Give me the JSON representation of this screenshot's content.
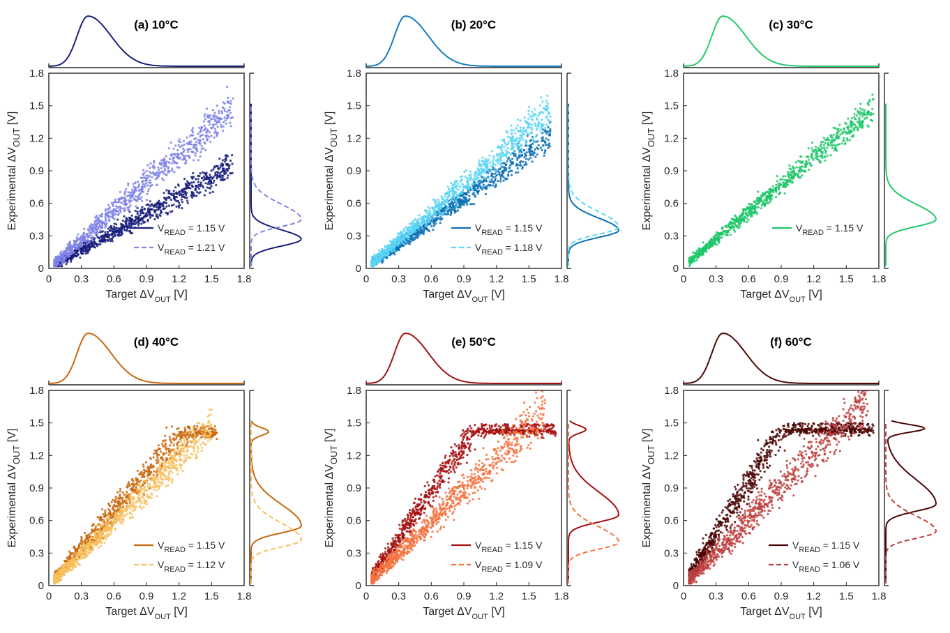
{
  "chart_data": [
    {
      "type": "scatter",
      "title": "(a) 10°C",
      "xlabel": {
        "pre": "Target ΔV",
        "sub": "OUT",
        "post": " [V]"
      },
      "ylabel": {
        "pre": "Experimental ΔV",
        "sub": "OUT",
        "post": " [V]"
      },
      "xlim": [
        0,
        1.8
      ],
      "ylim": [
        0,
        1.8
      ],
      "xticks": [
        "0",
        "0.3",
        "0.6",
        "0.9",
        "1.2",
        "1.5",
        "1.8"
      ],
      "yticks": [
        "0",
        "0.3",
        "0.6",
        "0.9",
        "1.2",
        "1.5",
        "1.8"
      ],
      "marginal_x": {
        "color": "#1a1f7a",
        "peak": 0.36
      },
      "series": [
        {
          "name": "1.15 V",
          "legend_pre": "V",
          "legend_sub": "READ",
          "legend_post": " = 1.15 V",
          "color": "#171d7a",
          "style": "solid",
          "slope": 0.56,
          "intercept": 0.0,
          "spread": 0.05,
          "xmax": 1.7,
          "sat": null,
          "dist_peak": 0.27,
          "dist_width": 0.12
        },
        {
          "name": "1.21 V",
          "legend_pre": "V",
          "legend_sub": "READ",
          "legend_post": " = 1.21 V",
          "color": "#7f84e6",
          "style": "dashed",
          "slope": 0.88,
          "intercept": 0.0,
          "spread": 0.07,
          "xmax": 1.7,
          "sat": null,
          "dist_peak": 0.45,
          "dist_width": 0.2
        }
      ]
    },
    {
      "type": "scatter",
      "title": "(b) 20°C",
      "xlabel": {
        "pre": "Target ΔV",
        "sub": "OUT",
        "post": " [V]"
      },
      "ylabel": {
        "pre": "Experimental ΔV",
        "sub": "OUT",
        "post": " [V]"
      },
      "xlim": [
        0,
        1.8
      ],
      "ylim": [
        0,
        1.8
      ],
      "xticks": [
        "0",
        "0.3",
        "0.6",
        "0.9",
        "1.2",
        "1.5",
        "1.8"
      ],
      "yticks": [
        "0",
        "0.3",
        "0.6",
        "0.9",
        "1.2",
        "1.5",
        "1.8"
      ],
      "marginal_x": {
        "color": "#127bbd",
        "peak": 0.36
      },
      "series": [
        {
          "name": "1.15 V",
          "legend_pre": "V",
          "legend_sub": "READ",
          "legend_post": " = 1.15 V",
          "color": "#0d6fb3",
          "style": "solid",
          "slope": 0.72,
          "intercept": 0.0,
          "spread": 0.05,
          "xmax": 1.7,
          "sat": null,
          "dist_peak": 0.35,
          "dist_width": 0.16
        },
        {
          "name": "1.18 V",
          "legend_pre": "V",
          "legend_sub": "READ",
          "legend_post": " = 1.18 V",
          "color": "#5bd5f5",
          "style": "dashed",
          "slope": 0.86,
          "intercept": 0.0,
          "spread": 0.06,
          "xmax": 1.7,
          "sat": null,
          "dist_peak": 0.38,
          "dist_width": 0.2
        }
      ]
    },
    {
      "type": "scatter",
      "title": "(c) 30°C",
      "xlabel": {
        "pre": "Target ΔV",
        "sub": "OUT",
        "post": " [V]"
      },
      "ylabel": {
        "pre": "Experimental ΔV",
        "sub": "OUT",
        "post": " [V]"
      },
      "xlim": [
        0,
        1.8
      ],
      "ylim": [
        0,
        1.8
      ],
      "xticks": [
        "0",
        "0.3",
        "0.6",
        "0.9",
        "1.2",
        "1.5",
        "1.8"
      ],
      "yticks": [
        "0",
        "0.3",
        "0.6",
        "0.9",
        "1.2",
        "1.5",
        "1.8"
      ],
      "marginal_x": {
        "color": "#23c86a",
        "peak": 0.36
      },
      "series": [
        {
          "name": "1.15 V",
          "legend_pre": "V",
          "legend_sub": "READ",
          "legend_post": " = 1.15 V",
          "color": "#1fc76a",
          "style": "solid",
          "slope": 0.84,
          "intercept": 0.02,
          "spread": 0.05,
          "xmax": 1.75,
          "sat": null,
          "dist_peak": 0.45,
          "dist_width": 0.2
        }
      ]
    },
    {
      "type": "scatter",
      "title": "(d) 40°C",
      "xlabel": {
        "pre": "Target ΔV",
        "sub": "OUT",
        "post": " [V]"
      },
      "ylabel": {
        "pre": "Experimental ΔV",
        "sub": "OUT",
        "post": " [V]"
      },
      "xlim": [
        0,
        1.8
      ],
      "ylim": [
        0,
        1.8
      ],
      "xticks": [
        "0",
        "0.3",
        "0.6",
        "0.9",
        "1.2",
        "1.5",
        "1.8"
      ],
      "yticks": [
        "0",
        "0.3",
        "0.6",
        "0.9",
        "1.2",
        "1.5",
        "1.8"
      ],
      "marginal_x": {
        "color": "#c8670e",
        "peak": 0.36
      },
      "series": [
        {
          "name": "1.15 V",
          "legend_pre": "V",
          "legend_sub": "READ",
          "legend_post": " = 1.15 V",
          "color": "#c8670e",
          "style": "solid",
          "slope": 1.15,
          "intercept": 0.0,
          "spread": 0.08,
          "xmax": 1.55,
          "sat": 1.42,
          "dist_peak": 0.55,
          "dist_width": 0.28
        },
        {
          "name": "1.12 V",
          "legend_pre": "V",
          "legend_sub": "READ",
          "legend_post": " = 1.12 V",
          "color": "#f8bf5e",
          "style": "dashed",
          "slope": 0.98,
          "intercept": 0.0,
          "spread": 0.07,
          "xmax": 1.5,
          "sat": null,
          "dist_peak": 0.42,
          "dist_width": 0.22
        }
      ]
    },
    {
      "type": "scatter",
      "title": "(e) 50°C",
      "xlabel": {
        "pre": "Target ΔV",
        "sub": "OUT",
        "post": " [V]"
      },
      "ylabel": {
        "pre": "Experimental ΔV",
        "sub": "OUT",
        "post": " [V]"
      },
      "xlim": [
        0,
        1.8
      ],
      "ylim": [
        0,
        1.8
      ],
      "xticks": [
        "0",
        "0.3",
        "0.6",
        "0.9",
        "1.2",
        "1.5",
        "1.8"
      ],
      "yticks": [
        "0",
        "0.3",
        "0.6",
        "0.9",
        "1.2",
        "1.5",
        "1.8"
      ],
      "marginal_x": {
        "color": "#a01010",
        "peak": 0.36
      },
      "series": [
        {
          "name": "1.15 V",
          "legend_pre": "V",
          "legend_sub": "READ",
          "legend_post": " = 1.15 V",
          "color": "#a50f0f",
          "style": "solid",
          "slope": 1.45,
          "intercept": 0.0,
          "spread": 0.09,
          "xmax": 1.75,
          "sat": 1.44,
          "dist_peak": 0.65,
          "dist_width": 0.3
        },
        {
          "name": "1.09 V",
          "legend_pre": "V",
          "legend_sub": "READ",
          "legend_post": " = 1.09 V",
          "color": "#f4733f",
          "style": "dashed",
          "slope": 0.98,
          "intercept": 0.0,
          "spread": 0.08,
          "xmax": 1.65,
          "sat": null,
          "dist_peak": 0.4,
          "dist_width": 0.2
        }
      ]
    },
    {
      "type": "scatter",
      "title": "(f) 60°C",
      "xlabel": {
        "pre": "Target ΔV",
        "sub": "OUT",
        "post": " [V]"
      },
      "ylabel": {
        "pre": "Experimental ΔV",
        "sub": "OUT",
        "post": " [V]"
      },
      "xlim": [
        0,
        1.8
      ],
      "ylim": [
        0,
        1.8
      ],
      "xticks": [
        "0",
        "0.3",
        "0.6",
        "0.9",
        "1.2",
        "1.5",
        "1.8"
      ],
      "yticks": [
        "0",
        "0.3",
        "0.6",
        "0.9",
        "1.2",
        "1.5",
        "1.8"
      ],
      "marginal_x": {
        "color": "#4a0707",
        "peak": 0.36
      },
      "series": [
        {
          "name": "1.15 V",
          "legend_pre": "V",
          "legend_sub": "READ",
          "legend_post": " = 1.15 V",
          "color": "#4b0505",
          "style": "solid",
          "slope": 1.6,
          "intercept": 0.0,
          "spread": 0.11,
          "xmax": 1.75,
          "sat": 1.45,
          "dist_peak": 0.75,
          "dist_width": 0.32
        },
        {
          "name": "1.06 V",
          "legend_pre": "V",
          "legend_sub": "READ",
          "legend_post": " = 1.06 V",
          "color": "#bd4040",
          "style": "dashed",
          "slope": 1.02,
          "intercept": 0.0,
          "spread": 0.09,
          "xmax": 1.7,
          "sat": null,
          "dist_peak": 0.5,
          "dist_width": 0.2
        }
      ]
    }
  ]
}
